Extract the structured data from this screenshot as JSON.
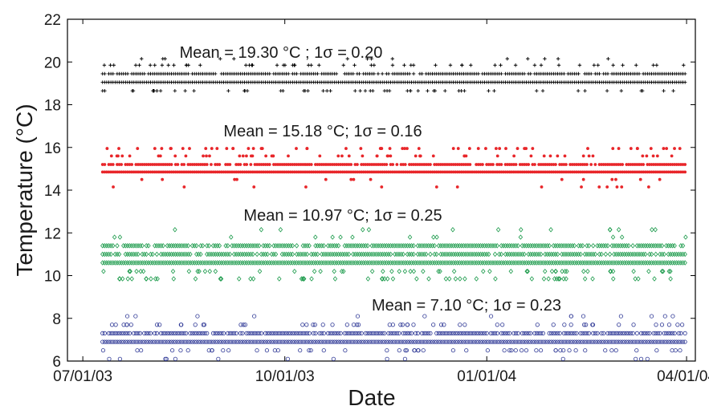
{
  "chart_data": {
    "type": "scatter",
    "title": "",
    "xlabel": "Date",
    "ylabel": "Temperature (°C)",
    "x_type": "date",
    "xlim": [
      "2003-06-24",
      "2004-04-05"
    ],
    "ylim": [
      6,
      22
    ],
    "yticks": [
      6,
      8,
      10,
      12,
      14,
      16,
      18,
      20,
      22
    ],
    "xticks": [
      {
        "date": "2003-07-01",
        "label": "07/01/03"
      },
      {
        "date": "2003-10-01",
        "label": "10/01/03"
      },
      {
        "date": "2004-01-01",
        "label": "01/01/04"
      },
      {
        "date": "2004-04-01",
        "label": "04/01/04"
      }
    ],
    "grid": false,
    "legend": "none",
    "series": [
      {
        "marker": "plus",
        "color": "#000000",
        "x_range": [
          "2003-07-10",
          "2004-04-01"
        ],
        "mean": 19.3,
        "sigma": 0.2,
        "levels": [
          19.05,
          19.45
        ],
        "outlier_levels": [
          18.65,
          19.85,
          20.15
        ],
        "annotation": "Mean = 19.30 °C ; 1σ =  0.20"
      },
      {
        "marker": "dot",
        "color": "#e8262a",
        "x_range": [
          "2003-07-10",
          "2004-04-01"
        ],
        "mean": 15.18,
        "sigma": 0.16,
        "levels": [
          14.85,
          15.2
        ],
        "outlier_levels": [
          15.6,
          15.95,
          14.5,
          14.15
        ],
        "annotation": "Mean = 15.18 °C; 1σ = 0.16"
      },
      {
        "marker": "diamond",
        "color": "#1a9a4a",
        "x_range": [
          "2003-07-10",
          "2004-04-01"
        ],
        "mean": 10.97,
        "sigma": 0.25,
        "levels": [
          10.6,
          11.0,
          11.4
        ],
        "outlier_levels": [
          10.2,
          9.85,
          11.8,
          12.15
        ],
        "annotation": "Mean = 10.97 °C; 1σ = 0.25"
      },
      {
        "marker": "circle",
        "color": "#2b3594",
        "x_range": [
          "2003-07-10",
          "2004-04-01"
        ],
        "mean": 7.1,
        "sigma": 0.23,
        "levels": [
          6.9,
          7.3
        ],
        "outlier_levels": [
          6.5,
          7.7,
          8.1,
          6.1
        ],
        "annotation": "Mean = 7.10 °C; 1σ = 0.23"
      }
    ]
  }
}
